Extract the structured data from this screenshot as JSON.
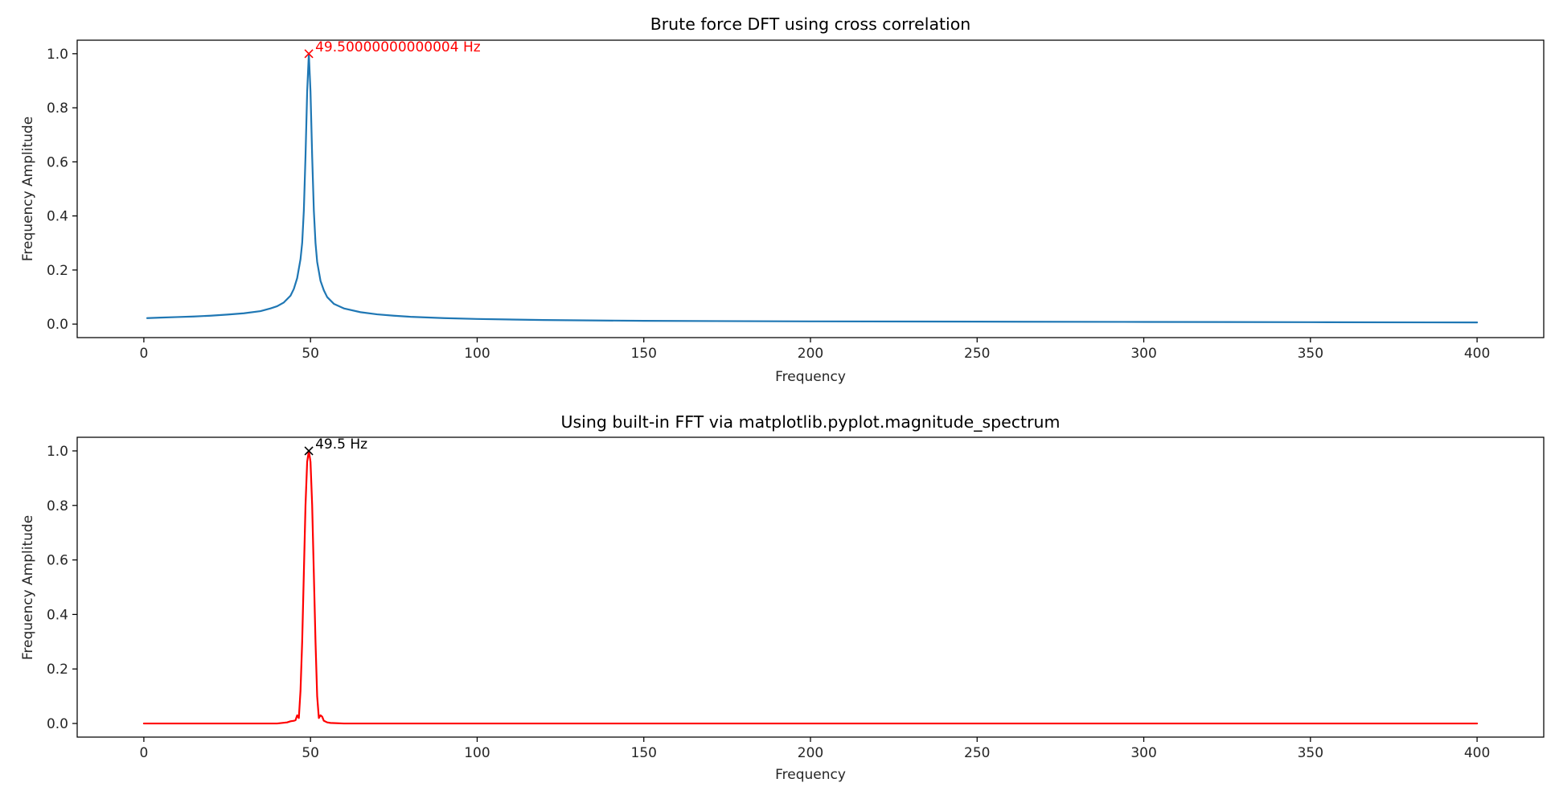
{
  "chart_data": [
    {
      "type": "line",
      "title": "Brute force DFT using cross correlation",
      "xlabel": "Frequency",
      "ylabel": "Frequency Amplitude",
      "xlim": [
        -20,
        420
      ],
      "ylim": [
        -0.05,
        1.05
      ],
      "xticks": [
        0,
        50,
        100,
        150,
        200,
        250,
        300,
        350,
        400
      ],
      "xtick_labels": [
        "0",
        "50",
        "100",
        "150",
        "200",
        "250",
        "300",
        "350",
        "400"
      ],
      "yticks": [
        0.0,
        0.2,
        0.4,
        0.6,
        0.8,
        1.0
      ],
      "ytick_labels": [
        "0.0",
        "0.2",
        "0.4",
        "0.6",
        "0.8",
        "1.0"
      ],
      "grid": false,
      "series": [
        {
          "color": "#1f77b4",
          "x": [
            1,
            5,
            10,
            15,
            20,
            25,
            30,
            35,
            38,
            40,
            42,
            44,
            45,
            46,
            47,
            47.5,
            48,
            48.5,
            49,
            49.5,
            50,
            50.5,
            51,
            51.5,
            52,
            53,
            54,
            55,
            57,
            60,
            65,
            70,
            75,
            80,
            90,
            100,
            120,
            150,
            200,
            250,
            300,
            350,
            400
          ],
          "y": [
            0.022,
            0.024,
            0.026,
            0.028,
            0.031,
            0.035,
            0.04,
            0.048,
            0.058,
            0.066,
            0.08,
            0.105,
            0.13,
            0.17,
            0.24,
            0.3,
            0.42,
            0.62,
            0.86,
            1.0,
            0.86,
            0.62,
            0.42,
            0.3,
            0.23,
            0.16,
            0.125,
            0.1,
            0.075,
            0.058,
            0.044,
            0.036,
            0.031,
            0.027,
            0.022,
            0.019,
            0.015,
            0.012,
            0.01,
            0.009,
            0.008,
            0.007,
            0.006
          ]
        }
      ],
      "peak": {
        "x": 49.5,
        "y": 1.0,
        "marker": "x",
        "color": "#ff0000",
        "label": "49.50000000000004 Hz"
      }
    },
    {
      "type": "line",
      "title": "Using built-in FFT via matplotlib.pyplot.magnitude_spectrum",
      "xlabel": "Frequency",
      "ylabel": "Frequency Amplitude",
      "xlim": [
        -20,
        420
      ],
      "ylim": [
        -0.05,
        1.05
      ],
      "xticks": [
        0,
        50,
        100,
        150,
        200,
        250,
        300,
        350,
        400
      ],
      "xtick_labels": [
        "0",
        "50",
        "100",
        "150",
        "200",
        "250",
        "300",
        "350",
        "400"
      ],
      "yticks": [
        0.0,
        0.2,
        0.4,
        0.6,
        0.8,
        1.0
      ],
      "ytick_labels": [
        "0.0",
        "0.2",
        "0.4",
        "0.6",
        "0.8",
        "1.0"
      ],
      "grid": false,
      "series": [
        {
          "color": "#ff0000",
          "x": [
            0,
            40,
            43,
            44,
            45,
            45.5,
            46,
            46.5,
            47,
            47.5,
            48,
            48.5,
            49,
            49.5,
            50,
            50.5,
            51,
            51.5,
            52,
            52.5,
            53,
            53.5,
            54,
            55,
            56,
            60,
            100,
            200,
            300,
            400
          ],
          "y": [
            0.0,
            0.0,
            0.004,
            0.008,
            0.01,
            0.012,
            0.03,
            0.02,
            0.12,
            0.3,
            0.55,
            0.8,
            0.96,
            1.0,
            0.96,
            0.8,
            0.55,
            0.3,
            0.1,
            0.02,
            0.03,
            0.025,
            0.01,
            0.004,
            0.002,
            0.0,
            0.0,
            0.0,
            0.0,
            0.0
          ]
        }
      ],
      "peak": {
        "x": 49.5,
        "y": 1.0,
        "marker": "x",
        "color": "#000000",
        "label": "49.5 Hz"
      }
    }
  ]
}
